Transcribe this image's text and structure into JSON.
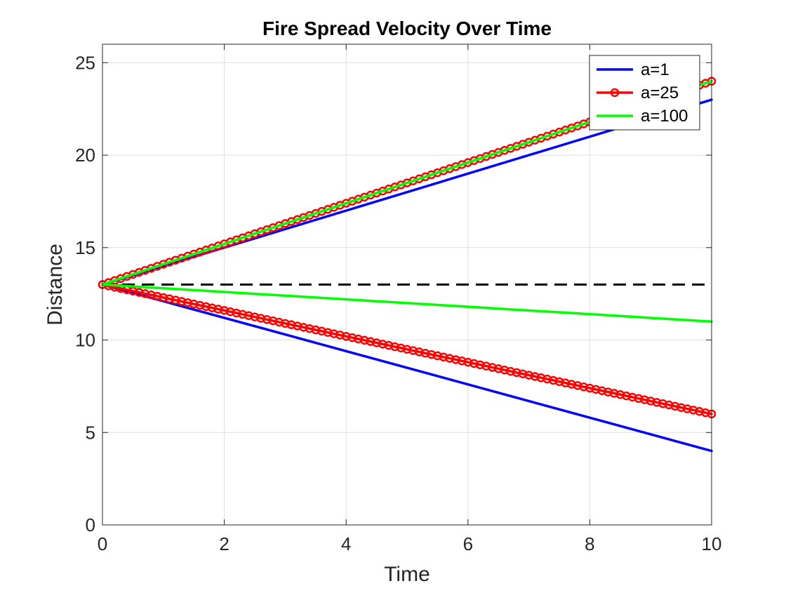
{
  "chart_data": {
    "type": "line",
    "title": "Fire Spread Velocity Over Time",
    "xlabel": "Time",
    "ylabel": "Distance",
    "xlim": [
      0,
      10
    ],
    "ylim": [
      0,
      26
    ],
    "xticks": [
      0,
      2,
      4,
      6,
      8,
      10
    ],
    "yticks": [
      0,
      5,
      10,
      15,
      20,
      25
    ],
    "grid": true,
    "legend_position": "top-right",
    "reference_line": {
      "y": 13,
      "color": "#000000",
      "style": "dashed"
    },
    "series": [
      {
        "name": "a=1",
        "color": "#0000ff",
        "marker": "none",
        "branches": [
          {
            "x": [
              0,
              10
            ],
            "y": [
              13,
              23
            ]
          },
          {
            "x": [
              0,
              10
            ],
            "y": [
              13,
              4
            ]
          }
        ]
      },
      {
        "name": "a=25",
        "color": "#ff0000",
        "marker": "circle",
        "branches": [
          {
            "x": [
              0,
              10
            ],
            "y": [
              13,
              24
            ]
          },
          {
            "x": [
              0,
              10
            ],
            "y": [
              13,
              6
            ]
          }
        ]
      },
      {
        "name": "a=100",
        "color": "#00ff00",
        "marker": "none",
        "branches": [
          {
            "x": [
              0,
              10
            ],
            "y": [
              13,
              24
            ]
          },
          {
            "x": [
              0,
              10
            ],
            "y": [
              13,
              11
            ]
          }
        ]
      }
    ]
  }
}
